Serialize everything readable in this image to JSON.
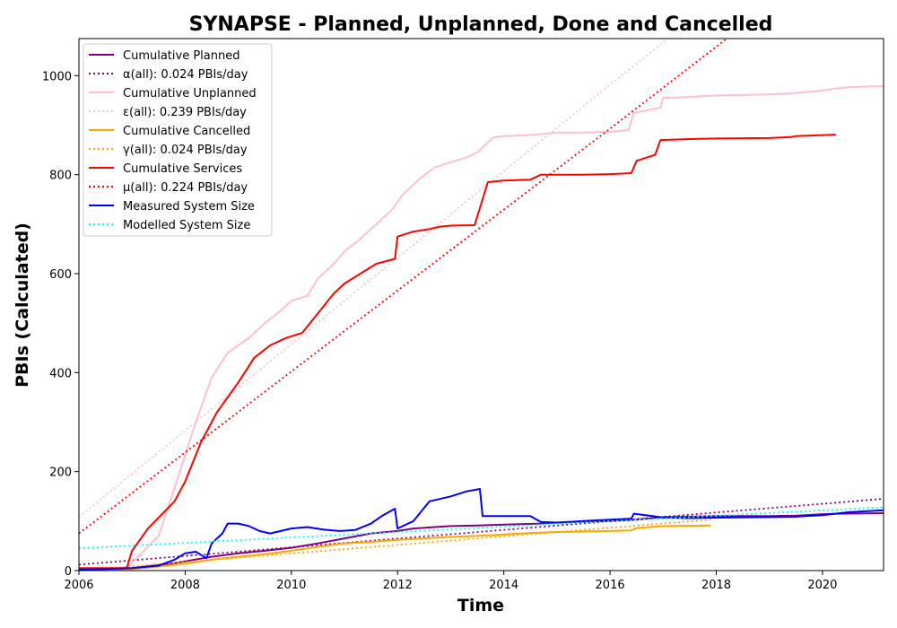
{
  "chart_data": {
    "type": "line",
    "title": "SYNAPSE - Planned, Unplanned, Done  and Cancelled",
    "xlabel": "Time",
    "ylabel": "PBIs (Calculated)",
    "xlim": [
      2006.0,
      2021.15
    ],
    "ylim": [
      0,
      1075
    ],
    "xticks": [
      2006,
      2008,
      2010,
      2012,
      2014,
      2016,
      2018,
      2020
    ],
    "yticks": [
      0,
      200,
      400,
      600,
      800,
      1000
    ],
    "grid": false,
    "legend_position": "top-left",
    "series": [
      {
        "name": "Cumulative Planned",
        "color": "#800080",
        "style": "solid",
        "points": [
          [
            2006.0,
            2
          ],
          [
            2007.0,
            5
          ],
          [
            2007.8,
            15
          ],
          [
            2008.5,
            28
          ],
          [
            2009.0,
            35
          ],
          [
            2009.5,
            40
          ],
          [
            2010.0,
            46
          ],
          [
            2010.5,
            55
          ],
          [
            2011.0,
            65
          ],
          [
            2011.5,
            75
          ],
          [
            2012.0,
            80
          ],
          [
            2012.3,
            85
          ],
          [
            2012.7,
            88
          ],
          [
            2013.0,
            90
          ],
          [
            2013.5,
            91
          ],
          [
            2014.0,
            93
          ],
          [
            2014.7,
            95
          ],
          [
            2015.0,
            97
          ],
          [
            2015.5,
            99
          ],
          [
            2016.0,
            100
          ],
          [
            2016.5,
            103
          ],
          [
            2017.0,
            108
          ],
          [
            2017.5,
            109
          ],
          [
            2018.0,
            110
          ],
          [
            2019.0,
            110
          ],
          [
            2019.5,
            111
          ],
          [
            2020.0,
            114
          ],
          [
            2020.3,
            115
          ],
          [
            2021.15,
            116
          ]
        ]
      },
      {
        "name": "α(all): 0.024 PBIs/day",
        "color": "#800080",
        "style": "dotted",
        "points": [
          [
            2006.0,
            12
          ],
          [
            2021.15,
            145
          ]
        ]
      },
      {
        "name": "Cumulative Unplanned",
        "color": "#ffc0cb",
        "style": "solid",
        "points": [
          [
            2006.0,
            2
          ],
          [
            2006.9,
            5
          ],
          [
            2007.5,
            70
          ],
          [
            2007.9,
            200
          ],
          [
            2008.2,
            300
          ],
          [
            2008.5,
            390
          ],
          [
            2008.8,
            440
          ],
          [
            2009.2,
            470
          ],
          [
            2009.5,
            500
          ],
          [
            2009.8,
            525
          ],
          [
            2010.0,
            545
          ],
          [
            2010.3,
            555
          ],
          [
            2010.5,
            590
          ],
          [
            2010.8,
            620
          ],
          [
            2011.0,
            645
          ],
          [
            2011.3,
            670
          ],
          [
            2011.6,
            700
          ],
          [
            2011.9,
            730
          ],
          [
            2012.1,
            760
          ],
          [
            2012.4,
            790
          ],
          [
            2012.7,
            815
          ],
          [
            2013.0,
            825
          ],
          [
            2013.3,
            835
          ],
          [
            2013.5,
            845
          ],
          [
            2013.8,
            875
          ],
          [
            2014.0,
            878
          ],
          [
            2014.5,
            880
          ],
          [
            2015.0,
            885
          ],
          [
            2015.5,
            885
          ],
          [
            2016.0,
            887
          ],
          [
            2016.35,
            890
          ],
          [
            2016.45,
            925
          ],
          [
            2016.8,
            932
          ],
          [
            2016.95,
            935
          ],
          [
            2017.0,
            955
          ],
          [
            2017.5,
            957
          ],
          [
            2018.0,
            960
          ],
          [
            2019.0,
            962
          ],
          [
            2019.5,
            965
          ],
          [
            2020.0,
            970
          ],
          [
            2020.3,
            975
          ],
          [
            2020.5,
            977
          ],
          [
            2021.15,
            979
          ]
        ]
      },
      {
        "name": "ε(all): 0.239 PBIs/day",
        "color": "#ffc0cb",
        "style": "dotted",
        "points": [
          [
            2006.0,
            108
          ],
          [
            2011.0,
            545
          ],
          [
            2016.0,
            982
          ],
          [
            2017.1,
            1075
          ]
        ]
      },
      {
        "name": "Cumulative Cancelled",
        "color": "#ffa500",
        "style": "solid",
        "points": [
          [
            2006.0,
            1
          ],
          [
            2007.0,
            3
          ],
          [
            2007.5,
            8
          ],
          [
            2008.0,
            14
          ],
          [
            2008.5,
            22
          ],
          [
            2009.0,
            28
          ],
          [
            2009.5,
            33
          ],
          [
            2010.0,
            40
          ],
          [
            2010.5,
            48
          ],
          [
            2011.0,
            55
          ],
          [
            2011.5,
            58
          ],
          [
            2012.0,
            62
          ],
          [
            2012.5,
            65
          ],
          [
            2013.0,
            68
          ],
          [
            2013.5,
            70
          ],
          [
            2014.0,
            73
          ],
          [
            2014.5,
            76
          ],
          [
            2015.0,
            78
          ],
          [
            2015.5,
            79
          ],
          [
            2016.0,
            80
          ],
          [
            2016.4,
            81
          ],
          [
            2016.5,
            86
          ],
          [
            2017.0,
            90
          ],
          [
            2017.9,
            91
          ]
        ]
      },
      {
        "name": "γ(all): 0.024 PBIs/day",
        "color": "#ffa500",
        "style": "dotted",
        "points": [
          [
            2006.0,
            0
          ],
          [
            2017.9,
            103
          ]
        ]
      },
      {
        "name": "Cumulative Services",
        "color": "#ff0000",
        "style": "solid",
        "points": [
          [
            2006.0,
            5
          ],
          [
            2006.9,
            5
          ],
          [
            2007.0,
            40
          ],
          [
            2007.3,
            85
          ],
          [
            2007.8,
            140
          ],
          [
            2008.0,
            180
          ],
          [
            2008.3,
            260
          ],
          [
            2008.6,
            320
          ],
          [
            2009.0,
            380
          ],
          [
            2009.3,
            430
          ],
          [
            2009.6,
            455
          ],
          [
            2009.9,
            470
          ],
          [
            2010.2,
            480
          ],
          [
            2010.5,
            520
          ],
          [
            2010.8,
            560
          ],
          [
            2011.0,
            580
          ],
          [
            2011.3,
            600
          ],
          [
            2011.6,
            620
          ],
          [
            2011.95,
            630
          ],
          [
            2012.0,
            675
          ],
          [
            2012.3,
            685
          ],
          [
            2012.6,
            690
          ],
          [
            2012.8,
            695
          ],
          [
            2013.0,
            697
          ],
          [
            2013.45,
            698
          ],
          [
            2013.7,
            785
          ],
          [
            2014.0,
            788
          ],
          [
            2014.5,
            790
          ],
          [
            2014.7,
            800
          ],
          [
            2015.0,
            800
          ],
          [
            2015.5,
            800
          ],
          [
            2016.0,
            801
          ],
          [
            2016.4,
            803
          ],
          [
            2016.5,
            828
          ],
          [
            2016.85,
            840
          ],
          [
            2016.95,
            870
          ],
          [
            2017.5,
            872
          ],
          [
            2018.0,
            873
          ],
          [
            2019.0,
            874
          ],
          [
            2019.4,
            876
          ],
          [
            2019.5,
            878
          ],
          [
            2020.0,
            880
          ],
          [
            2020.25,
            881
          ]
        ]
      },
      {
        "name": "μ(all): 0.224 PBIs/day",
        "color": "#ff0000",
        "style": "dotted",
        "points": [
          [
            2006.0,
            75
          ],
          [
            2011.0,
            484
          ],
          [
            2016.0,
            893
          ],
          [
            2018.2,
            1075
          ]
        ]
      },
      {
        "name": "Measured System Size",
        "color": "#0000ff",
        "style": "solid",
        "points": [
          [
            2006.0,
            2
          ],
          [
            2006.5,
            3
          ],
          [
            2007.0,
            5
          ],
          [
            2007.5,
            10
          ],
          [
            2007.8,
            22
          ],
          [
            2008.0,
            35
          ],
          [
            2008.2,
            38
          ],
          [
            2008.4,
            25
          ],
          [
            2008.5,
            55
          ],
          [
            2008.7,
            75
          ],
          [
            2008.8,
            95
          ],
          [
            2009.0,
            95
          ],
          [
            2009.2,
            90
          ],
          [
            2009.4,
            80
          ],
          [
            2009.6,
            75
          ],
          [
            2009.8,
            80
          ],
          [
            2010.0,
            85
          ],
          [
            2010.3,
            88
          ],
          [
            2010.6,
            83
          ],
          [
            2010.9,
            80
          ],
          [
            2011.2,
            82
          ],
          [
            2011.5,
            95
          ],
          [
            2011.7,
            110
          ],
          [
            2011.95,
            125
          ],
          [
            2012.0,
            85
          ],
          [
            2012.3,
            100
          ],
          [
            2012.6,
            140
          ],
          [
            2013.0,
            150
          ],
          [
            2013.3,
            160
          ],
          [
            2013.55,
            165
          ],
          [
            2013.6,
            110
          ],
          [
            2014.0,
            110
          ],
          [
            2014.5,
            110
          ],
          [
            2014.7,
            98
          ],
          [
            2015.0,
            97
          ],
          [
            2015.5,
            100
          ],
          [
            2016.0,
            103
          ],
          [
            2016.4,
            105
          ],
          [
            2016.45,
            115
          ],
          [
            2016.8,
            110
          ],
          [
            2017.0,
            107
          ],
          [
            2017.5,
            106
          ],
          [
            2018.0,
            107
          ],
          [
            2019.0,
            108
          ],
          [
            2019.5,
            109
          ],
          [
            2020.0,
            112
          ],
          [
            2020.5,
            118
          ],
          [
            2021.15,
            122
          ]
        ]
      },
      {
        "name": "Modelled System Size",
        "color": "#00ffff",
        "style": "dotted",
        "points": [
          [
            2006.0,
            45
          ],
          [
            2021.15,
            128
          ]
        ]
      }
    ]
  }
}
